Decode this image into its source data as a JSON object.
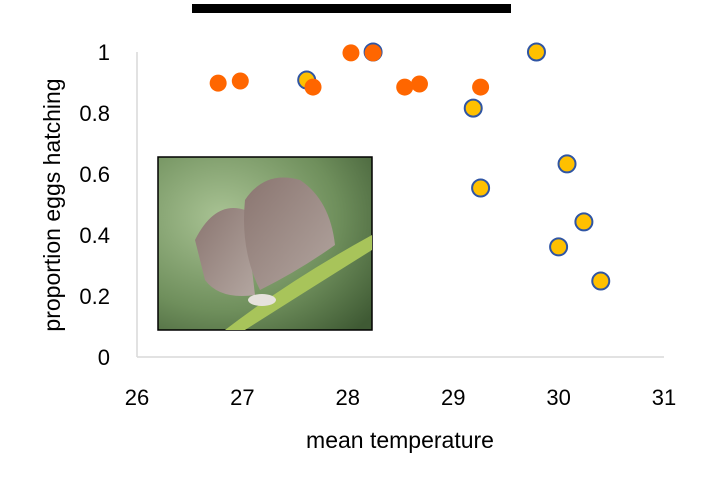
{
  "chart_data": {
    "type": "scatter",
    "title": "",
    "xlabel": "mean temperature",
    "ylabel": "proportion eggs hatching",
    "xlim": [
      26,
      31
    ],
    "ylim": [
      0,
      1
    ],
    "xticks": [
      26,
      27,
      28,
      29,
      30,
      31
    ],
    "yticks": [
      0,
      0.2,
      0.4,
      0.6,
      0.8,
      1
    ],
    "ytick_labels": [
      "0",
      "0.2",
      "0.4",
      "0.6",
      "0.8",
      "1"
    ],
    "grid": false,
    "series": [
      {
        "color": "#ff6600",
        "outline": "none",
        "points": [
          [
            29.26,
            0.885
          ]
        ]
      },
      {
        "color": "#ffc000",
        "outline": "#2f55a4",
        "points": [
          [
            27.61,
            0.908
          ],
          [
            28.24,
            1.0
          ],
          [
            29.19,
            0.816
          ],
          [
            29.26,
            0.554
          ],
          [
            29.79,
            1.0
          ],
          [
            30.08,
            0.633
          ],
          [
            30.24,
            0.443
          ],
          [
            30.0,
            0.361
          ],
          [
            30.4,
            0.249
          ]
        ]
      },
      {
        "color": "#ff6600",
        "outline": "none",
        "points": [
          [
            26.77,
            0.898
          ],
          [
            26.98,
            0.905
          ],
          [
            27.67,
            0.885
          ],
          [
            28.03,
            0.997
          ],
          [
            28.24,
            0.997
          ],
          [
            28.54,
            0.885
          ],
          [
            28.68,
            0.895
          ]
        ]
      }
    ],
    "inset_image": "butterfly-photo"
  }
}
